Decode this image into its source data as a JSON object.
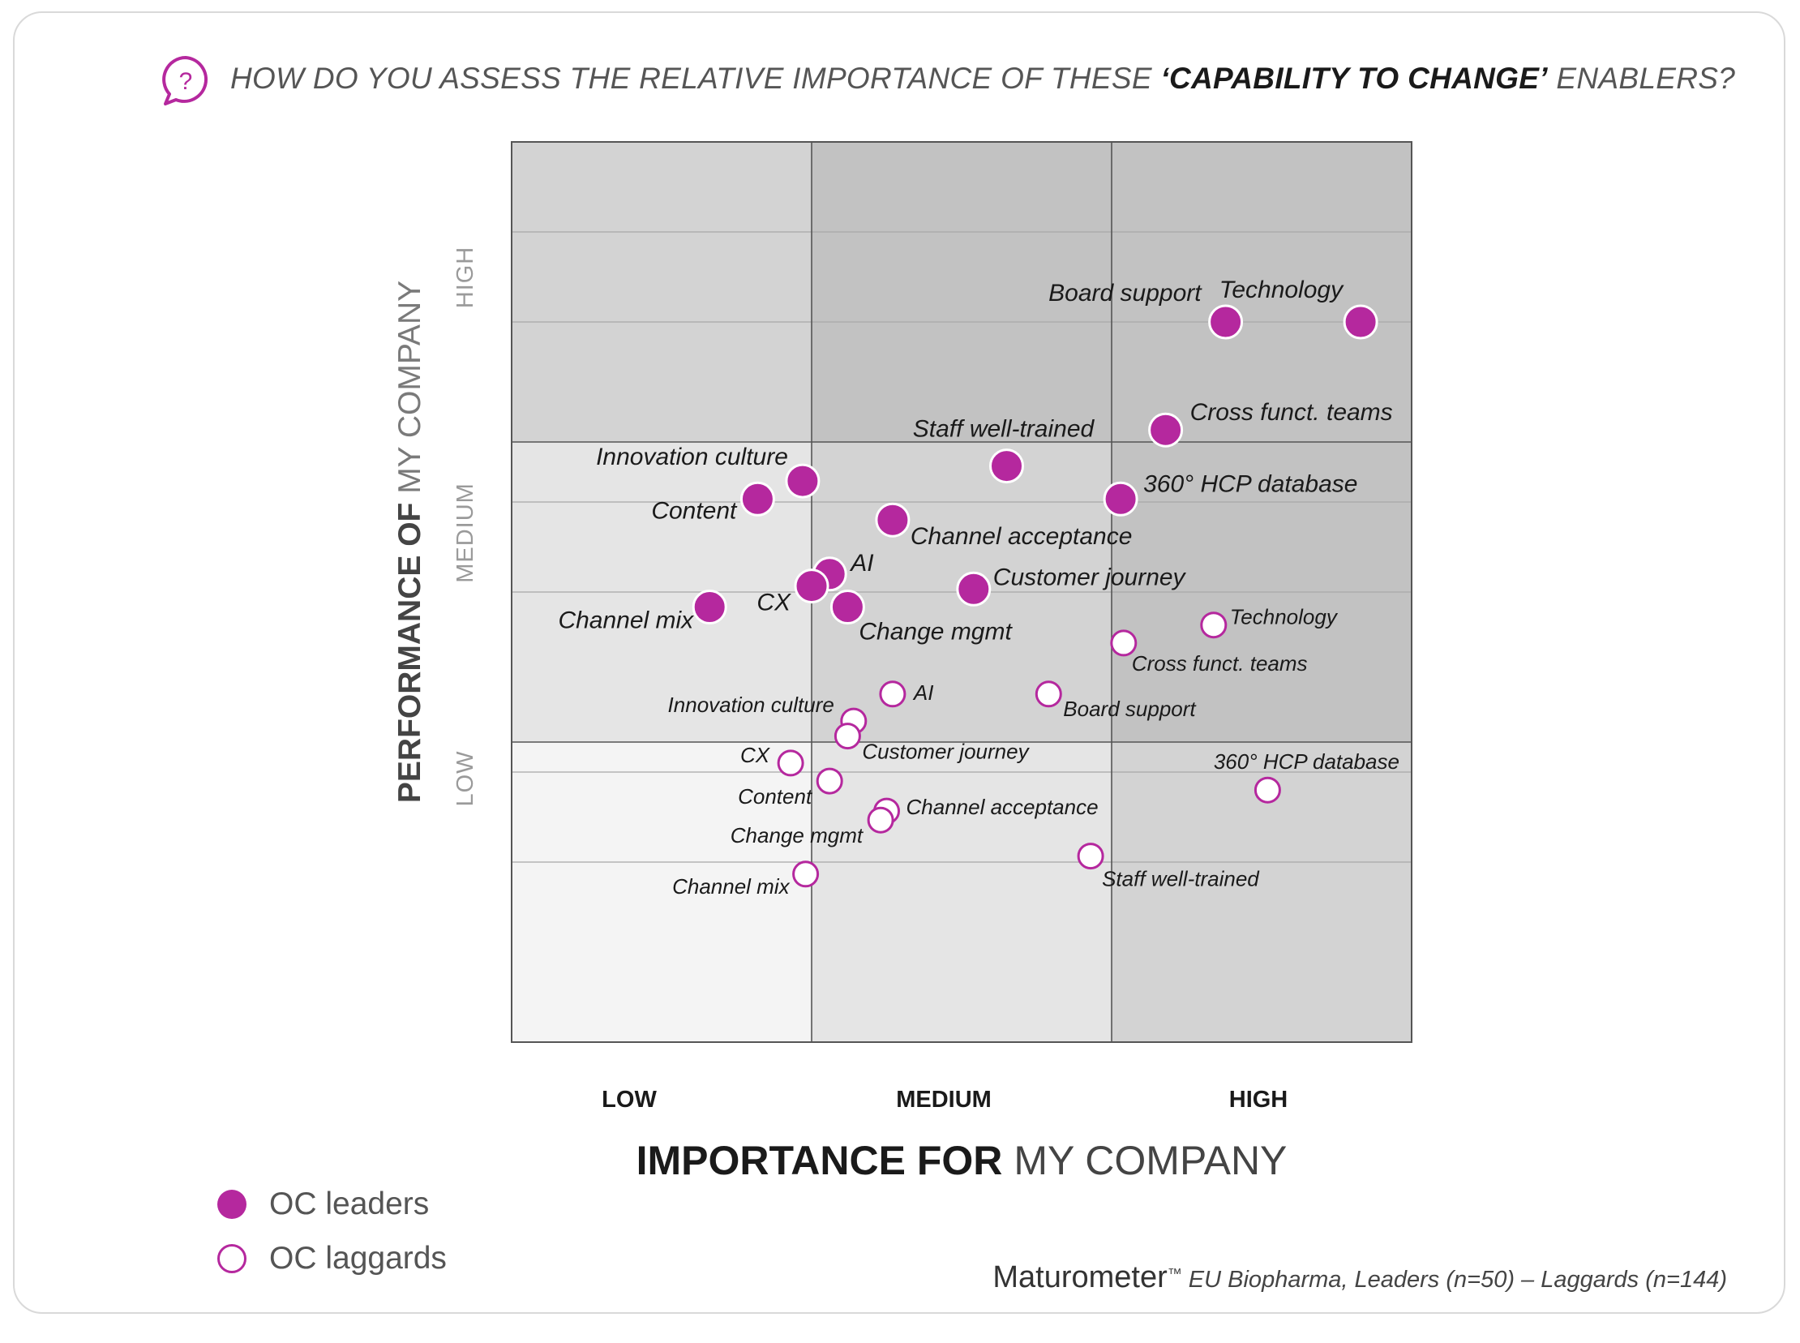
{
  "header": {
    "question_prefix": "HOW DO YOU ASSESS THE RELATIVE IMPORTANCE OF THESE ",
    "question_bold": "‘CAPABILITY TO CHANGE’",
    "question_suffix": " ENABLERS?",
    "icon": "question-bubble-icon"
  },
  "chart_data": {
    "type": "scatter",
    "title": "HOW DO YOU ASSESS THE RELATIVE IMPORTANCE OF THESE ‘CAPABILITY TO CHANGE’ ENABLERS?",
    "xlabel_bold": "IMPORTANCE FOR",
    "xlabel_rest": " MY COMPANY",
    "ylabel_bold": "PERFORMANCE OF",
    "ylabel_rest": " MY COMPANY",
    "xlim": [
      0,
      3
    ],
    "ylim": [
      0,
      3
    ],
    "x_ticks": [
      "LOW",
      "MEDIUM",
      "HIGH"
    ],
    "y_ticks": [
      "LOW",
      "MEDIUM",
      "HIGH"
    ],
    "grid": true,
    "colors": {
      "accent": "#b5289e",
      "zone_light": "#f4f4f4",
      "zone_mid": "#e5e5e5",
      "zone_dark": "#d3d3d3",
      "zone_darkest": "#c2c2c2"
    },
    "series": [
      {
        "name": "OC leaders",
        "style": "filled",
        "points": [
          {
            "label": "Technology",
            "x": 2.83,
            "y": 2.4
          },
          {
            "label": "Board support",
            "x": 2.38,
            "y": 2.4
          },
          {
            "label": "Cross funct. teams",
            "x": 2.18,
            "y": 2.04
          },
          {
            "label": "Staff well-trained",
            "x": 1.65,
            "y": 1.92
          },
          {
            "label": "360° HCP database",
            "x": 2.03,
            "y": 1.81
          },
          {
            "label": "Innovation culture",
            "x": 0.97,
            "y": 1.87
          },
          {
            "label": "Content",
            "x": 0.82,
            "y": 1.81
          },
          {
            "label": "Channel acceptance",
            "x": 1.27,
            "y": 1.74
          },
          {
            "label": "AI",
            "x": 1.06,
            "y": 1.56
          },
          {
            "label": "CX",
            "x": 1.0,
            "y": 1.52
          },
          {
            "label": "Customer journey",
            "x": 1.54,
            "y": 1.51
          },
          {
            "label": "Change mgmt",
            "x": 1.12,
            "y": 1.45
          },
          {
            "label": "Channel mix",
            "x": 0.66,
            "y": 1.45
          }
        ]
      },
      {
        "name": "OC laggards",
        "style": "hollow",
        "points": [
          {
            "label": "Technology",
            "x": 2.34,
            "y": 1.39
          },
          {
            "label": "Cross funct. teams",
            "x": 2.04,
            "y": 1.33
          },
          {
            "label": "AI",
            "x": 1.27,
            "y": 1.16
          },
          {
            "label": "Board support",
            "x": 1.79,
            "y": 1.16
          },
          {
            "label": "Innovation culture",
            "x": 1.14,
            "y": 1.07
          },
          {
            "label": "Customer journey",
            "x": 1.12,
            "y": 1.02
          },
          {
            "label": "CX",
            "x": 0.93,
            "y": 0.93
          },
          {
            "label": "Content",
            "x": 1.06,
            "y": 0.87
          },
          {
            "label": "360° HCP database",
            "x": 2.52,
            "y": 0.84
          },
          {
            "label": "Channel acceptance",
            "x": 1.25,
            "y": 0.77
          },
          {
            "label": "Change mgmt",
            "x": 1.23,
            "y": 0.74
          },
          {
            "label": "Staff well-trained",
            "x": 1.93,
            "y": 0.62
          },
          {
            "label": "Channel mix",
            "x": 0.98,
            "y": 0.56
          }
        ]
      }
    ]
  },
  "legend": {
    "leaders": "OC leaders",
    "laggards": "OC laggards"
  },
  "footer": {
    "brand": "Maturometer",
    "tm": "™",
    "note": " EU Biopharma, Leaders (n=50) – Laggards (n=144)"
  }
}
